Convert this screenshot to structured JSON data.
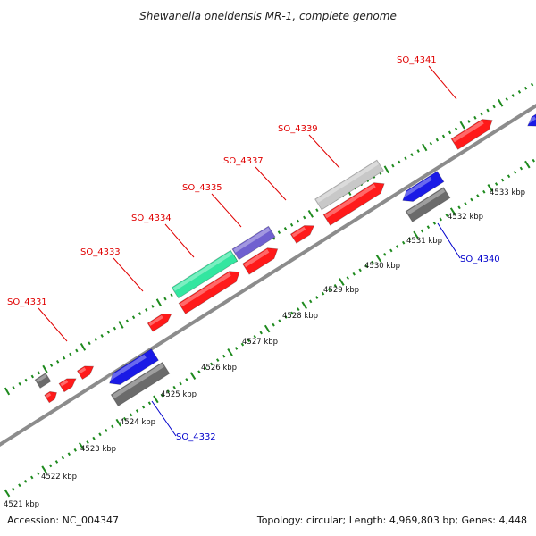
{
  "title": "Shewanella oneidensis MR-1, complete genome",
  "footer": {
    "accession": "Accession: NC_004347",
    "summary": "Topology: circular; Length: 4,969,803 bp; Genes: 4,448"
  },
  "colors": {
    "backbone": "#8c8c8c",
    "tick": "#1e8a1e",
    "label_forward": "#e00000",
    "label_reverse": "#0000cc",
    "red": "#ff1a1a",
    "blue": "#1a1ae6",
    "gray": "#6b6b6b",
    "lightgray": "#c8c8c8",
    "green": "#33e6a0",
    "purple": "#7060d0"
  },
  "kbp_labels": [
    "4521 kbp",
    "4522 kbp",
    "4523 kbp",
    "4524 kbp",
    "4525 kbp",
    "4526 kbp",
    "4527 kbp",
    "4528 kbp",
    "4529 kbp",
    "4530 kbp",
    "4531 kbp",
    "4532 kbp",
    "4533 kbp"
  ],
  "gene_labels": {
    "forward": [
      "SO_4331",
      "SO_4333",
      "SO_4334",
      "SO_4335",
      "SO_4337",
      "SO_4339",
      "SO_4341"
    ],
    "reverse": [
      "SO_4332",
      "SO_4340"
    ]
  }
}
